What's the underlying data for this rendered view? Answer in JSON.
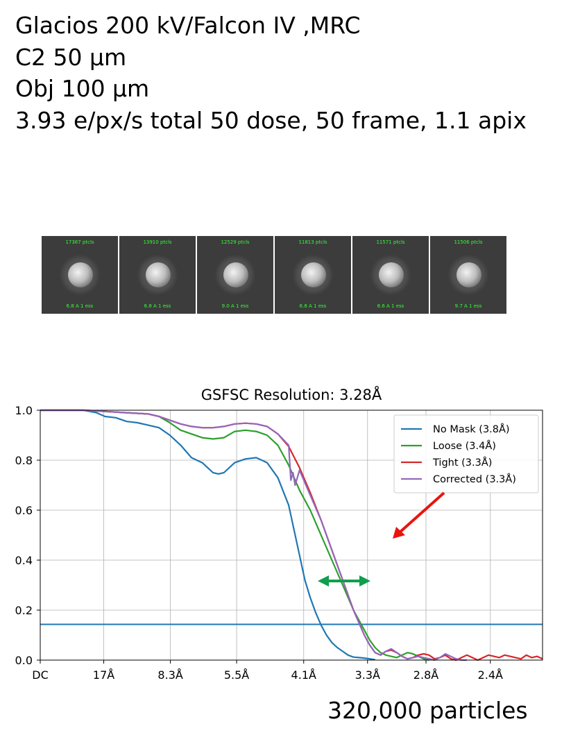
{
  "header": {
    "line1": "Glacios 200 kV/Falcon IV ,MRC",
    "line2": "C2 50 μm",
    "line3": "Obj 100 μm",
    "line4": "3.93 e/px/s total 50 dose, 50 frame, 1.1 apix"
  },
  "classes": [
    {
      "ptcls": "17387 ptcls",
      "res": "6.8 A 1 ess"
    },
    {
      "ptcls": "13910 ptcls",
      "res": "6.8 A 1 ess"
    },
    {
      "ptcls": "12529 ptcls",
      "res": "9.0 A 1 ess"
    },
    {
      "ptcls": "11813 ptcls",
      "res": "6.8 A 1 ess"
    },
    {
      "ptcls": "11571 ptcls",
      "res": "8.6 A 1 ess"
    },
    {
      "ptcls": "11506 ptcls",
      "res": "9.7 A 1 ess"
    }
  ],
  "colors": {
    "classText": "#33ff33",
    "classBg": "#3c3c3c",
    "arrowRed": "#e8150f",
    "arrowGreen": "#0f9e4f"
  },
  "particles_label": "320,000 particles",
  "chart_data": {
    "type": "line",
    "title": "GSFSC Resolution: 3.28Å",
    "xlabel": "",
    "ylabel": "",
    "ylim": [
      0,
      1.0
    ],
    "xlim": [
      0,
      0.465
    ],
    "grid": true,
    "legend_position": "top-right",
    "x_ticks": [
      {
        "x": 0.0,
        "label": "DC"
      },
      {
        "x": 0.0588,
        "label": "17Å"
      },
      {
        "x": 0.1205,
        "label": "8.3Å"
      },
      {
        "x": 0.1818,
        "label": "5.5Å"
      },
      {
        "x": 0.2439,
        "label": "4.1Å"
      },
      {
        "x": 0.303,
        "label": "3.3Å"
      },
      {
        "x": 0.3571,
        "label": "2.8Å"
      },
      {
        "x": 0.4167,
        "label": "2.4Å"
      }
    ],
    "y_ticks": [
      0.0,
      0.2,
      0.4,
      0.6,
      0.8,
      1.0
    ],
    "y_tick_labels": [
      "0.0",
      "0.2",
      "0.4",
      "0.6",
      "0.8",
      "1.0"
    ],
    "threshold": 0.143,
    "series": [
      {
        "name": "No Mask (3.8Å)",
        "color": "#1f77b4",
        "x": [
          0,
          0.02,
          0.04,
          0.052,
          0.06,
          0.07,
          0.08,
          0.09,
          0.1,
          0.11,
          0.12,
          0.13,
          0.14,
          0.15,
          0.155,
          0.16,
          0.165,
          0.17,
          0.18,
          0.19,
          0.2,
          0.21,
          0.22,
          0.23,
          0.235,
          0.24,
          0.245,
          0.25,
          0.255,
          0.26,
          0.265,
          0.27,
          0.275,
          0.28,
          0.285,
          0.29,
          0.295,
          0.3,
          0.305,
          0.31
        ],
        "y": [
          1.0,
          1.0,
          1.0,
          0.99,
          0.975,
          0.97,
          0.955,
          0.95,
          0.94,
          0.93,
          0.9,
          0.86,
          0.81,
          0.79,
          0.77,
          0.75,
          0.745,
          0.75,
          0.79,
          0.805,
          0.81,
          0.79,
          0.73,
          0.62,
          0.52,
          0.42,
          0.32,
          0.25,
          0.19,
          0.14,
          0.1,
          0.07,
          0.05,
          0.035,
          0.02,
          0.012,
          0.01,
          0.008,
          0.005,
          0.002
        ]
      },
      {
        "name": "Loose (3.4Å)",
        "color": "#2ca02c",
        "x": [
          0,
          0.04,
          0.06,
          0.08,
          0.1,
          0.11,
          0.12,
          0.13,
          0.14,
          0.15,
          0.16,
          0.17,
          0.18,
          0.19,
          0.2,
          0.21,
          0.22,
          0.23,
          0.24,
          0.25,
          0.26,
          0.27,
          0.28,
          0.29,
          0.3,
          0.305,
          0.31,
          0.315,
          0.32,
          0.33,
          0.335,
          0.34,
          0.345,
          0.35,
          0.355,
          0.36
        ],
        "y": [
          1.0,
          1.0,
          0.995,
          0.99,
          0.985,
          0.975,
          0.95,
          0.92,
          0.905,
          0.89,
          0.885,
          0.89,
          0.915,
          0.92,
          0.915,
          0.9,
          0.86,
          0.78,
          0.68,
          0.6,
          0.5,
          0.4,
          0.3,
          0.2,
          0.12,
          0.08,
          0.05,
          0.03,
          0.02,
          0.01,
          0.02,
          0.03,
          0.025,
          0.015,
          0.005,
          0.0
        ]
      },
      {
        "name": "Tight (3.3Å)",
        "color": "#d62728",
        "x": [
          0,
          0.04,
          0.06,
          0.08,
          0.1,
          0.11,
          0.12,
          0.13,
          0.14,
          0.15,
          0.16,
          0.17,
          0.18,
          0.19,
          0.2,
          0.21,
          0.22,
          0.23,
          0.24,
          0.25,
          0.26,
          0.27,
          0.28,
          0.29,
          0.3,
          0.305,
          0.31,
          0.315,
          0.32,
          0.325,
          0.33,
          0.335,
          0.34,
          0.345,
          0.35,
          0.355,
          0.36,
          0.365,
          0.37,
          0.375,
          0.38,
          0.385,
          0.39,
          0.395,
          0.4,
          0.405,
          0.41,
          0.415,
          0.42,
          0.425,
          0.43,
          0.435,
          0.44,
          0.445,
          0.45,
          0.455,
          0.46,
          0.465
        ],
        "y": [
          1.0,
          1.0,
          0.995,
          0.99,
          0.985,
          0.975,
          0.96,
          0.945,
          0.935,
          0.93,
          0.93,
          0.935,
          0.945,
          0.948,
          0.945,
          0.935,
          0.905,
          0.855,
          0.77,
          0.67,
          0.56,
          0.44,
          0.32,
          0.2,
          0.1,
          0.06,
          0.03,
          0.02,
          0.035,
          0.04,
          0.03,
          0.015,
          0.005,
          0.01,
          0.02,
          0.025,
          0.02,
          0.005,
          0.01,
          0.02,
          0.005,
          0.0,
          0.01,
          0.02,
          0.01,
          0.0,
          0.01,
          0.02,
          0.015,
          0.01,
          0.02,
          0.015,
          0.01,
          0.005,
          0.02,
          0.01,
          0.015,
          0.005
        ]
      },
      {
        "name": "Corrected (3.3Å)",
        "color": "#9467bd",
        "x": [
          0,
          0.04,
          0.06,
          0.08,
          0.1,
          0.11,
          0.12,
          0.13,
          0.14,
          0.15,
          0.16,
          0.17,
          0.18,
          0.19,
          0.2,
          0.21,
          0.22,
          0.23,
          0.232,
          0.234,
          0.236,
          0.24,
          0.25,
          0.26,
          0.27,
          0.28,
          0.29,
          0.3,
          0.305,
          0.31,
          0.315,
          0.32,
          0.325,
          0.33,
          0.335,
          0.34,
          0.345,
          0.35,
          0.355,
          0.36,
          0.365,
          0.37,
          0.375,
          0.38,
          0.385,
          0.39,
          0.395
        ],
        "y": [
          1.0,
          1.0,
          0.995,
          0.99,
          0.985,
          0.975,
          0.96,
          0.945,
          0.935,
          0.93,
          0.93,
          0.935,
          0.945,
          0.948,
          0.945,
          0.935,
          0.905,
          0.86,
          0.72,
          0.75,
          0.7,
          0.76,
          0.66,
          0.56,
          0.44,
          0.32,
          0.2,
          0.1,
          0.06,
          0.03,
          0.02,
          0.035,
          0.045,
          0.03,
          0.015,
          0.005,
          0.01,
          0.015,
          0.01,
          0.005,
          0.0,
          0.01,
          0.025,
          0.015,
          0.005,
          0.0,
          0.0
        ]
      }
    ]
  }
}
